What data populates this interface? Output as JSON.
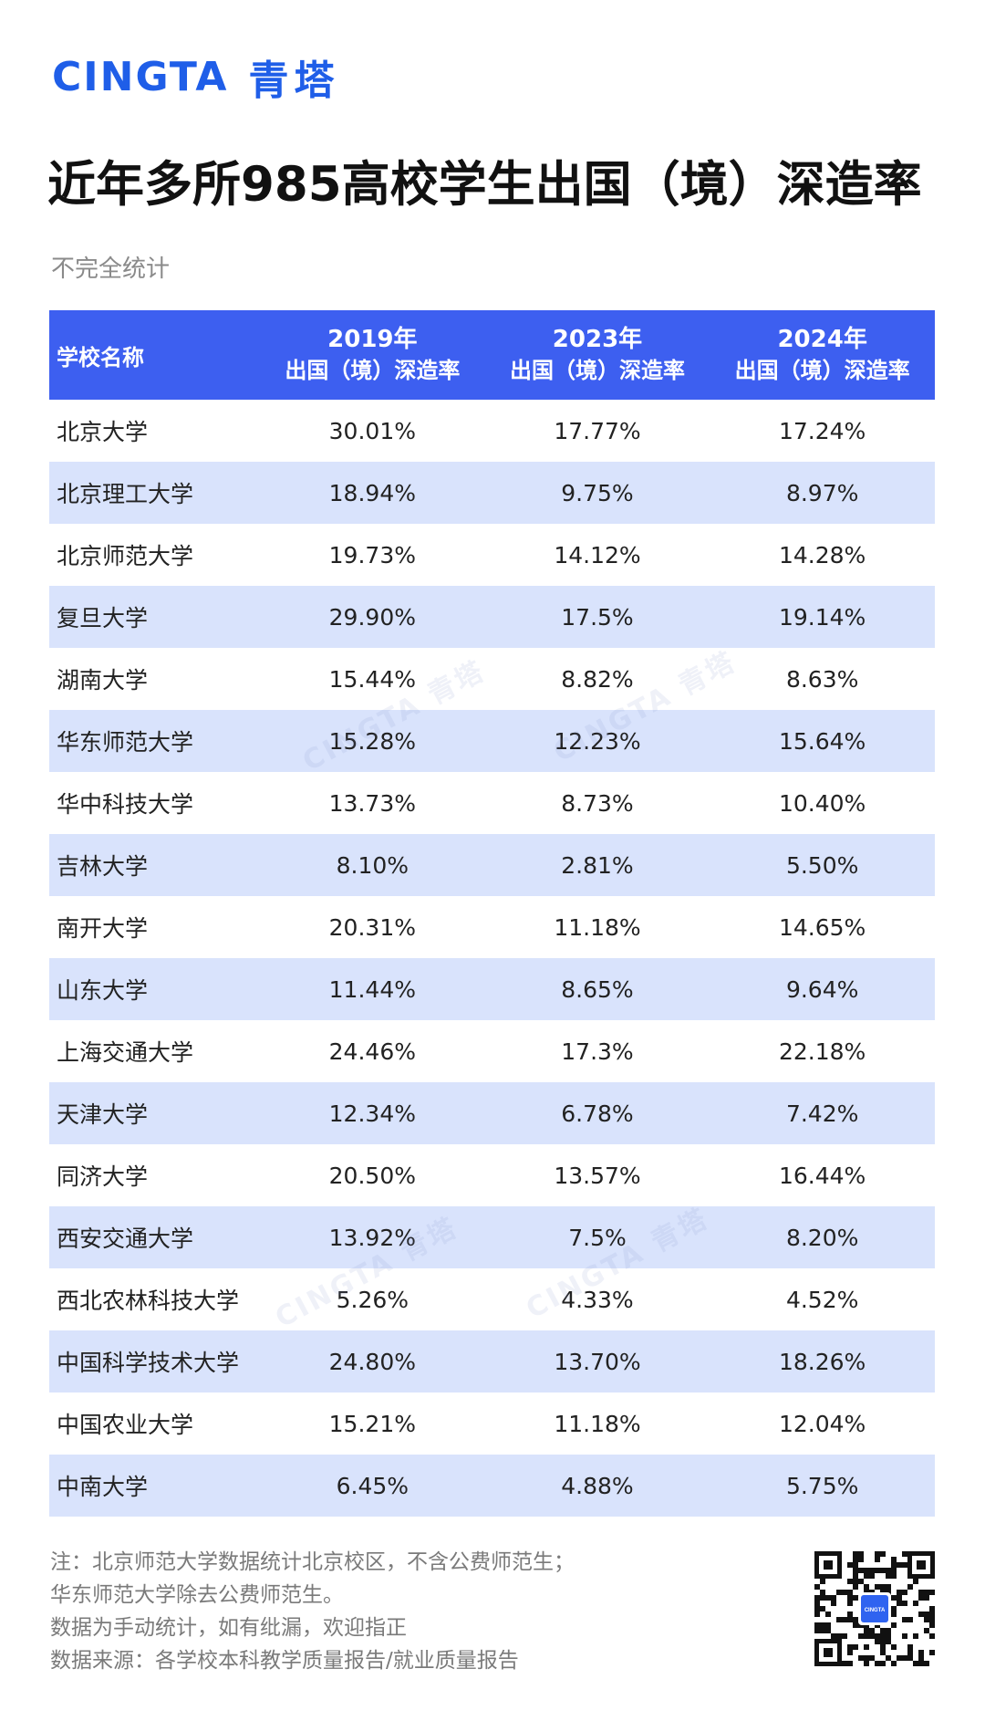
{
  "brand": {
    "en": "CINGTA",
    "cn": "青塔"
  },
  "title": "近年多所985高校学生出国（境）深造率",
  "subtitle": "不完全统计",
  "table": {
    "headers": {
      "name": "学校名称",
      "col2019": {
        "year": "2019年",
        "label": "出国（境）深造率"
      },
      "col2023": {
        "year": "2023年",
        "label": "出国（境）深造率"
      },
      "col2024": {
        "year": "2024年",
        "label": "出国（境）深造率"
      }
    },
    "rows": [
      {
        "name": "北京大学",
        "y2019": "30.01%",
        "y2023": "17.77%",
        "y2024": "17.24%"
      },
      {
        "name": "北京理工大学",
        "y2019": "18.94%",
        "y2023": "9.75%",
        "y2024": "8.97%"
      },
      {
        "name": "北京师范大学",
        "y2019": "19.73%",
        "y2023": "14.12%",
        "y2024": "14.28%"
      },
      {
        "name": "复旦大学",
        "y2019": "29.90%",
        "y2023": "17.5%",
        "y2024": "19.14%"
      },
      {
        "name": "湖南大学",
        "y2019": "15.44%",
        "y2023": "8.82%",
        "y2024": "8.63%"
      },
      {
        "name": "华东师范大学",
        "y2019": "15.28%",
        "y2023": "12.23%",
        "y2024": "15.64%"
      },
      {
        "name": "华中科技大学",
        "y2019": "13.73%",
        "y2023": "8.73%",
        "y2024": "10.40%"
      },
      {
        "name": "吉林大学",
        "y2019": "8.10%",
        "y2023": "2.81%",
        "y2024": "5.50%"
      },
      {
        "name": "南开大学",
        "y2019": "20.31%",
        "y2023": "11.18%",
        "y2024": "14.65%"
      },
      {
        "name": "山东大学",
        "y2019": "11.44%",
        "y2023": "8.65%",
        "y2024": "9.64%"
      },
      {
        "name": "上海交通大学",
        "y2019": "24.46%",
        "y2023": "17.3%",
        "y2024": "22.18%"
      },
      {
        "name": "天津大学",
        "y2019": "12.34%",
        "y2023": "6.78%",
        "y2024": "7.42%"
      },
      {
        "name": "同济大学",
        "y2019": "20.50%",
        "y2023": "13.57%",
        "y2024": "16.44%"
      },
      {
        "name": "西安交通大学",
        "y2019": "13.92%",
        "y2023": "7.5%",
        "y2024": "8.20%"
      },
      {
        "name": "西北农林科技大学",
        "y2019": "5.26%",
        "y2023": "4.33%",
        "y2024": "4.52%"
      },
      {
        "name": "中国科学技术大学",
        "y2019": "24.80%",
        "y2023": "13.70%",
        "y2024": "18.26%"
      },
      {
        "name": "中国农业大学",
        "y2019": "15.21%",
        "y2023": "11.18%",
        "y2024": "12.04%"
      },
      {
        "name": "中南大学",
        "y2019": "6.45%",
        "y2023": "4.88%",
        "y2024": "5.75%"
      }
    ]
  },
  "notes": [
    "注：北京师范大学数据统计北京校区，不含公费师范生；",
    "华东师范大学除去公费师范生。",
    "数据为手动统计，如有纰漏，欢迎指正",
    "数据来源：各学校本科教学质量报告/就业质量报告"
  ],
  "qr": {
    "label": "CINGTA"
  },
  "watermark": "CINGTA 青塔",
  "colors": {
    "brand": "#1f5ee8",
    "header_bg": "#3d5ff0",
    "alt_row": "#d9e3fc"
  }
}
